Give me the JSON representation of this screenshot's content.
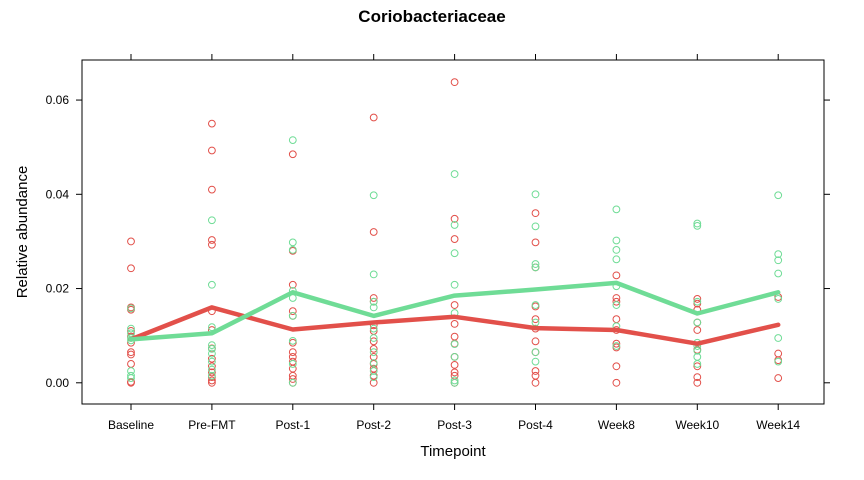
{
  "chart_data": {
    "type": "scatter",
    "title": "Coriobacteriaceae",
    "xlabel": "Timepoint",
    "ylabel": "Relative abundance",
    "categories": [
      "Baseline",
      "Pre-FMT",
      "Post-1",
      "Post-2",
      "Post-3",
      "Post-4",
      "Week8",
      "Week10",
      "Week14"
    ],
    "y_ticks": [
      "0.00",
      "0.02",
      "0.04",
      "0.06"
    ],
    "ylim": [
      -0.0045,
      0.0685
    ],
    "grid": false,
    "legend": false,
    "colors": {
      "red": "#e2504a",
      "green": "#6fdc96"
    },
    "series": [
      {
        "color": "red",
        "points": [
          [
            0.03,
            0.0243,
            0.016,
            0.0155,
            0.011,
            0.0098,
            0.0085,
            0.0065,
            0.006,
            0.004,
            0.0002,
            0.0
          ],
          [
            0.055,
            0.0493,
            0.041,
            0.0303,
            0.0293,
            0.0152,
            0.0112,
            0.0073,
            0.0051,
            0.0035,
            0.0022,
            0.0012,
            0.0005,
            0.0
          ],
          [
            0.0485,
            0.028,
            0.0208,
            0.0152,
            0.0142,
            0.0085,
            0.0065,
            0.0055,
            0.0045,
            0.003,
            0.0015,
            0.0008,
            0.0
          ],
          [
            0.0563,
            0.032,
            0.018,
            0.0172,
            0.0122,
            0.011,
            0.0088,
            0.0072,
            0.0055,
            0.004,
            0.003,
            0.0015,
            0.0
          ],
          [
            0.0638,
            0.0348,
            0.0305,
            0.0165,
            0.0125,
            0.0098,
            0.0083,
            0.0055,
            0.0038,
            0.0022,
            0.0015,
            0.0
          ],
          [
            0.036,
            0.0298,
            0.0245,
            0.0162,
            0.0135,
            0.0115,
            0.0088,
            0.0065,
            0.0025,
            0.0015,
            0.0
          ],
          [
            0.0228,
            0.018,
            0.0172,
            0.0135,
            0.0112,
            0.0083,
            0.0075,
            0.0035,
            0.0
          ],
          [
            0.0178,
            0.0168,
            0.0155,
            0.0128,
            0.0112,
            0.007,
            0.0035,
            0.0012,
            0.0
          ],
          [
            0.0182,
            0.0062,
            0.0048,
            0.001
          ]
        ]
      },
      {
        "color": "green",
        "points": [
          [
            0.0158,
            0.0115,
            0.0105,
            0.0095,
            0.009,
            0.0025,
            0.0015,
            0.001
          ],
          [
            0.0345,
            0.0208,
            0.0118,
            0.008,
            0.0072,
            0.0062,
            0.0045,
            0.0028,
            0.0015
          ],
          [
            0.0515,
            0.0298,
            0.0282,
            0.0195,
            0.018,
            0.0142,
            0.0089,
            0.004,
            0.0
          ],
          [
            0.0398,
            0.023,
            0.0172,
            0.016,
            0.0115,
            0.0095,
            0.0065,
            0.0042,
            0.0025,
            0.0012
          ],
          [
            0.0443,
            0.0335,
            0.0275,
            0.0208,
            0.0148,
            0.0082,
            0.0055,
            0.0005,
            0.0
          ],
          [
            0.04,
            0.0332,
            0.0252,
            0.0245,
            0.0165,
            0.0128,
            0.0065,
            0.0045
          ],
          [
            0.0368,
            0.0302,
            0.0282,
            0.0262,
            0.0205,
            0.0165,
            0.012,
            0.0078
          ],
          [
            0.0338,
            0.0333,
            0.0172,
            0.0128,
            0.0085,
            0.0078,
            0.0068,
            0.0055,
            0.004
          ],
          [
            0.0398,
            0.0273,
            0.026,
            0.0232,
            0.0178,
            0.0095,
            0.0045
          ]
        ]
      }
    ],
    "mean_lines": [
      {
        "color": "red",
        "values": [
          0.0092,
          0.016,
          0.0113,
          0.0128,
          0.014,
          0.0116,
          0.0112,
          0.0083,
          0.0123
        ]
      },
      {
        "color": "green",
        "values": [
          0.0092,
          0.0105,
          0.0192,
          0.0142,
          0.0185,
          0.0198,
          0.0212,
          0.0147,
          0.0192
        ]
      }
    ]
  }
}
